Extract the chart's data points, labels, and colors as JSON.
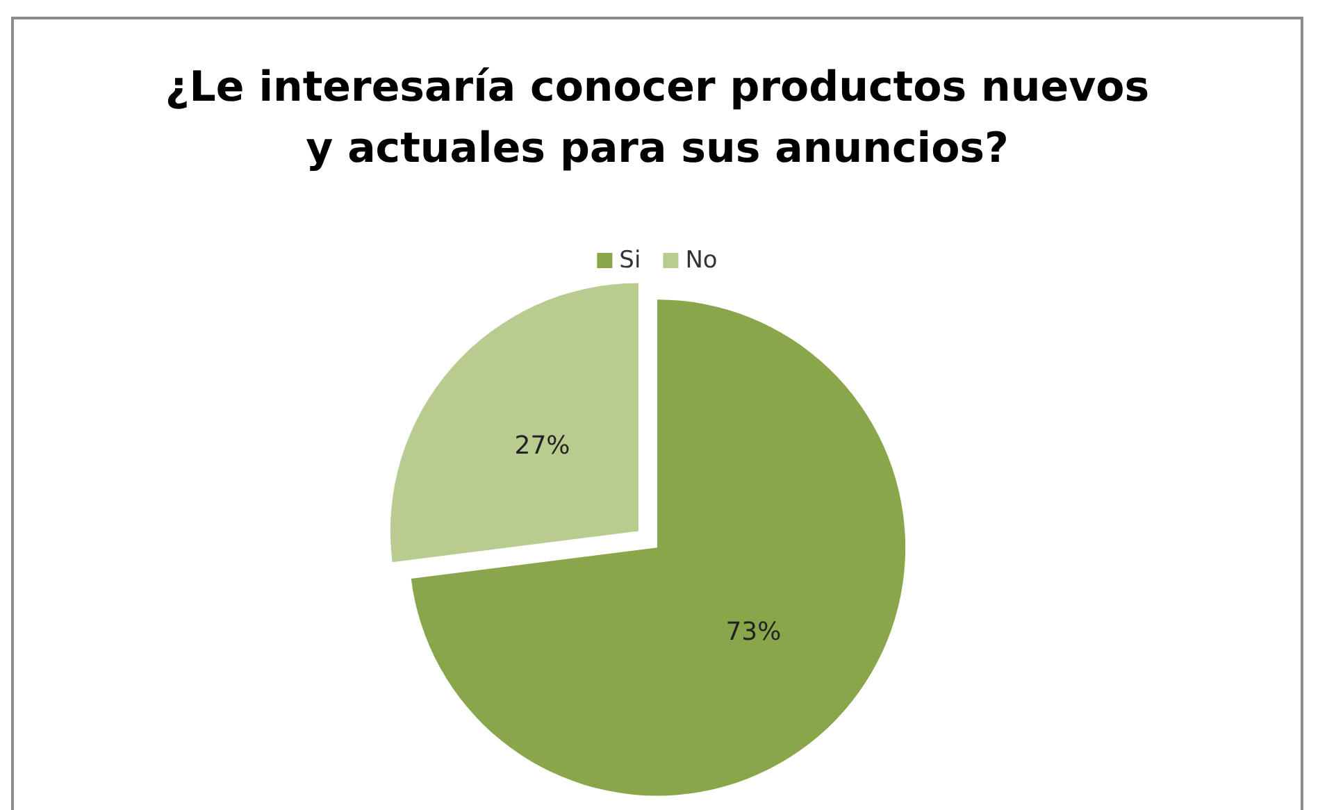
{
  "chart_data": {
    "type": "pie",
    "title": "¿Le interesaría conocer productos nuevos\ny actuales para sus anuncios?",
    "categories": [
      "Si",
      "No"
    ],
    "values": [
      73,
      27
    ],
    "colors": [
      "#8aa64a",
      "#b8cc90"
    ],
    "value_labels": [
      "73%",
      "27%"
    ],
    "legend": "top"
  }
}
